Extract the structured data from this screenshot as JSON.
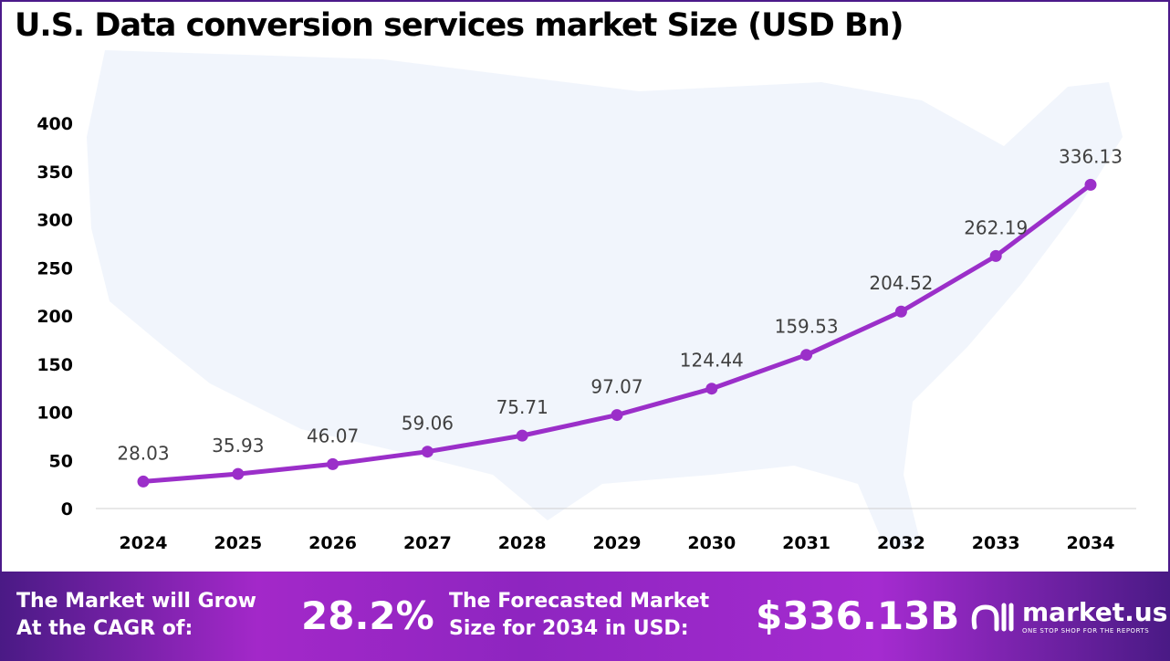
{
  "chart_data": {
    "type": "line",
    "title": "U.S. Data conversion services market Size (USD Bn)",
    "categories": [
      "2024",
      "2025",
      "2026",
      "2027",
      "2028",
      "2029",
      "2030",
      "2031",
      "2032",
      "2033",
      "2034"
    ],
    "values": [
      28.03,
      35.93,
      46.07,
      59.06,
      75.71,
      97.07,
      124.44,
      159.53,
      204.52,
      262.19,
      336.13
    ],
    "data_labels": [
      "28.03",
      "35.93",
      "46.07",
      "59.06",
      "75.71",
      "97.07",
      "124.44",
      "159.53",
      "204.52",
      "262.19",
      "336.13"
    ],
    "yticks": [
      "0",
      "50",
      "100",
      "150",
      "200",
      "250",
      "300",
      "350",
      "400"
    ],
    "ylim": [
      0,
      400
    ],
    "grid": false,
    "line_color": "#9b2fc9",
    "background": "faded US map"
  },
  "footer": {
    "cagr_label_1": "The Market will Grow",
    "cagr_label_2": "At the CAGR of:",
    "cagr_value": "28.2%",
    "forecast_label_1": "The Forecasted Market",
    "forecast_label_2": "Size for 2034 in USD:",
    "forecast_value": "$336.13B",
    "brand": "market.us",
    "tagline": "ONE STOP SHOP FOR THE REPORTS"
  }
}
